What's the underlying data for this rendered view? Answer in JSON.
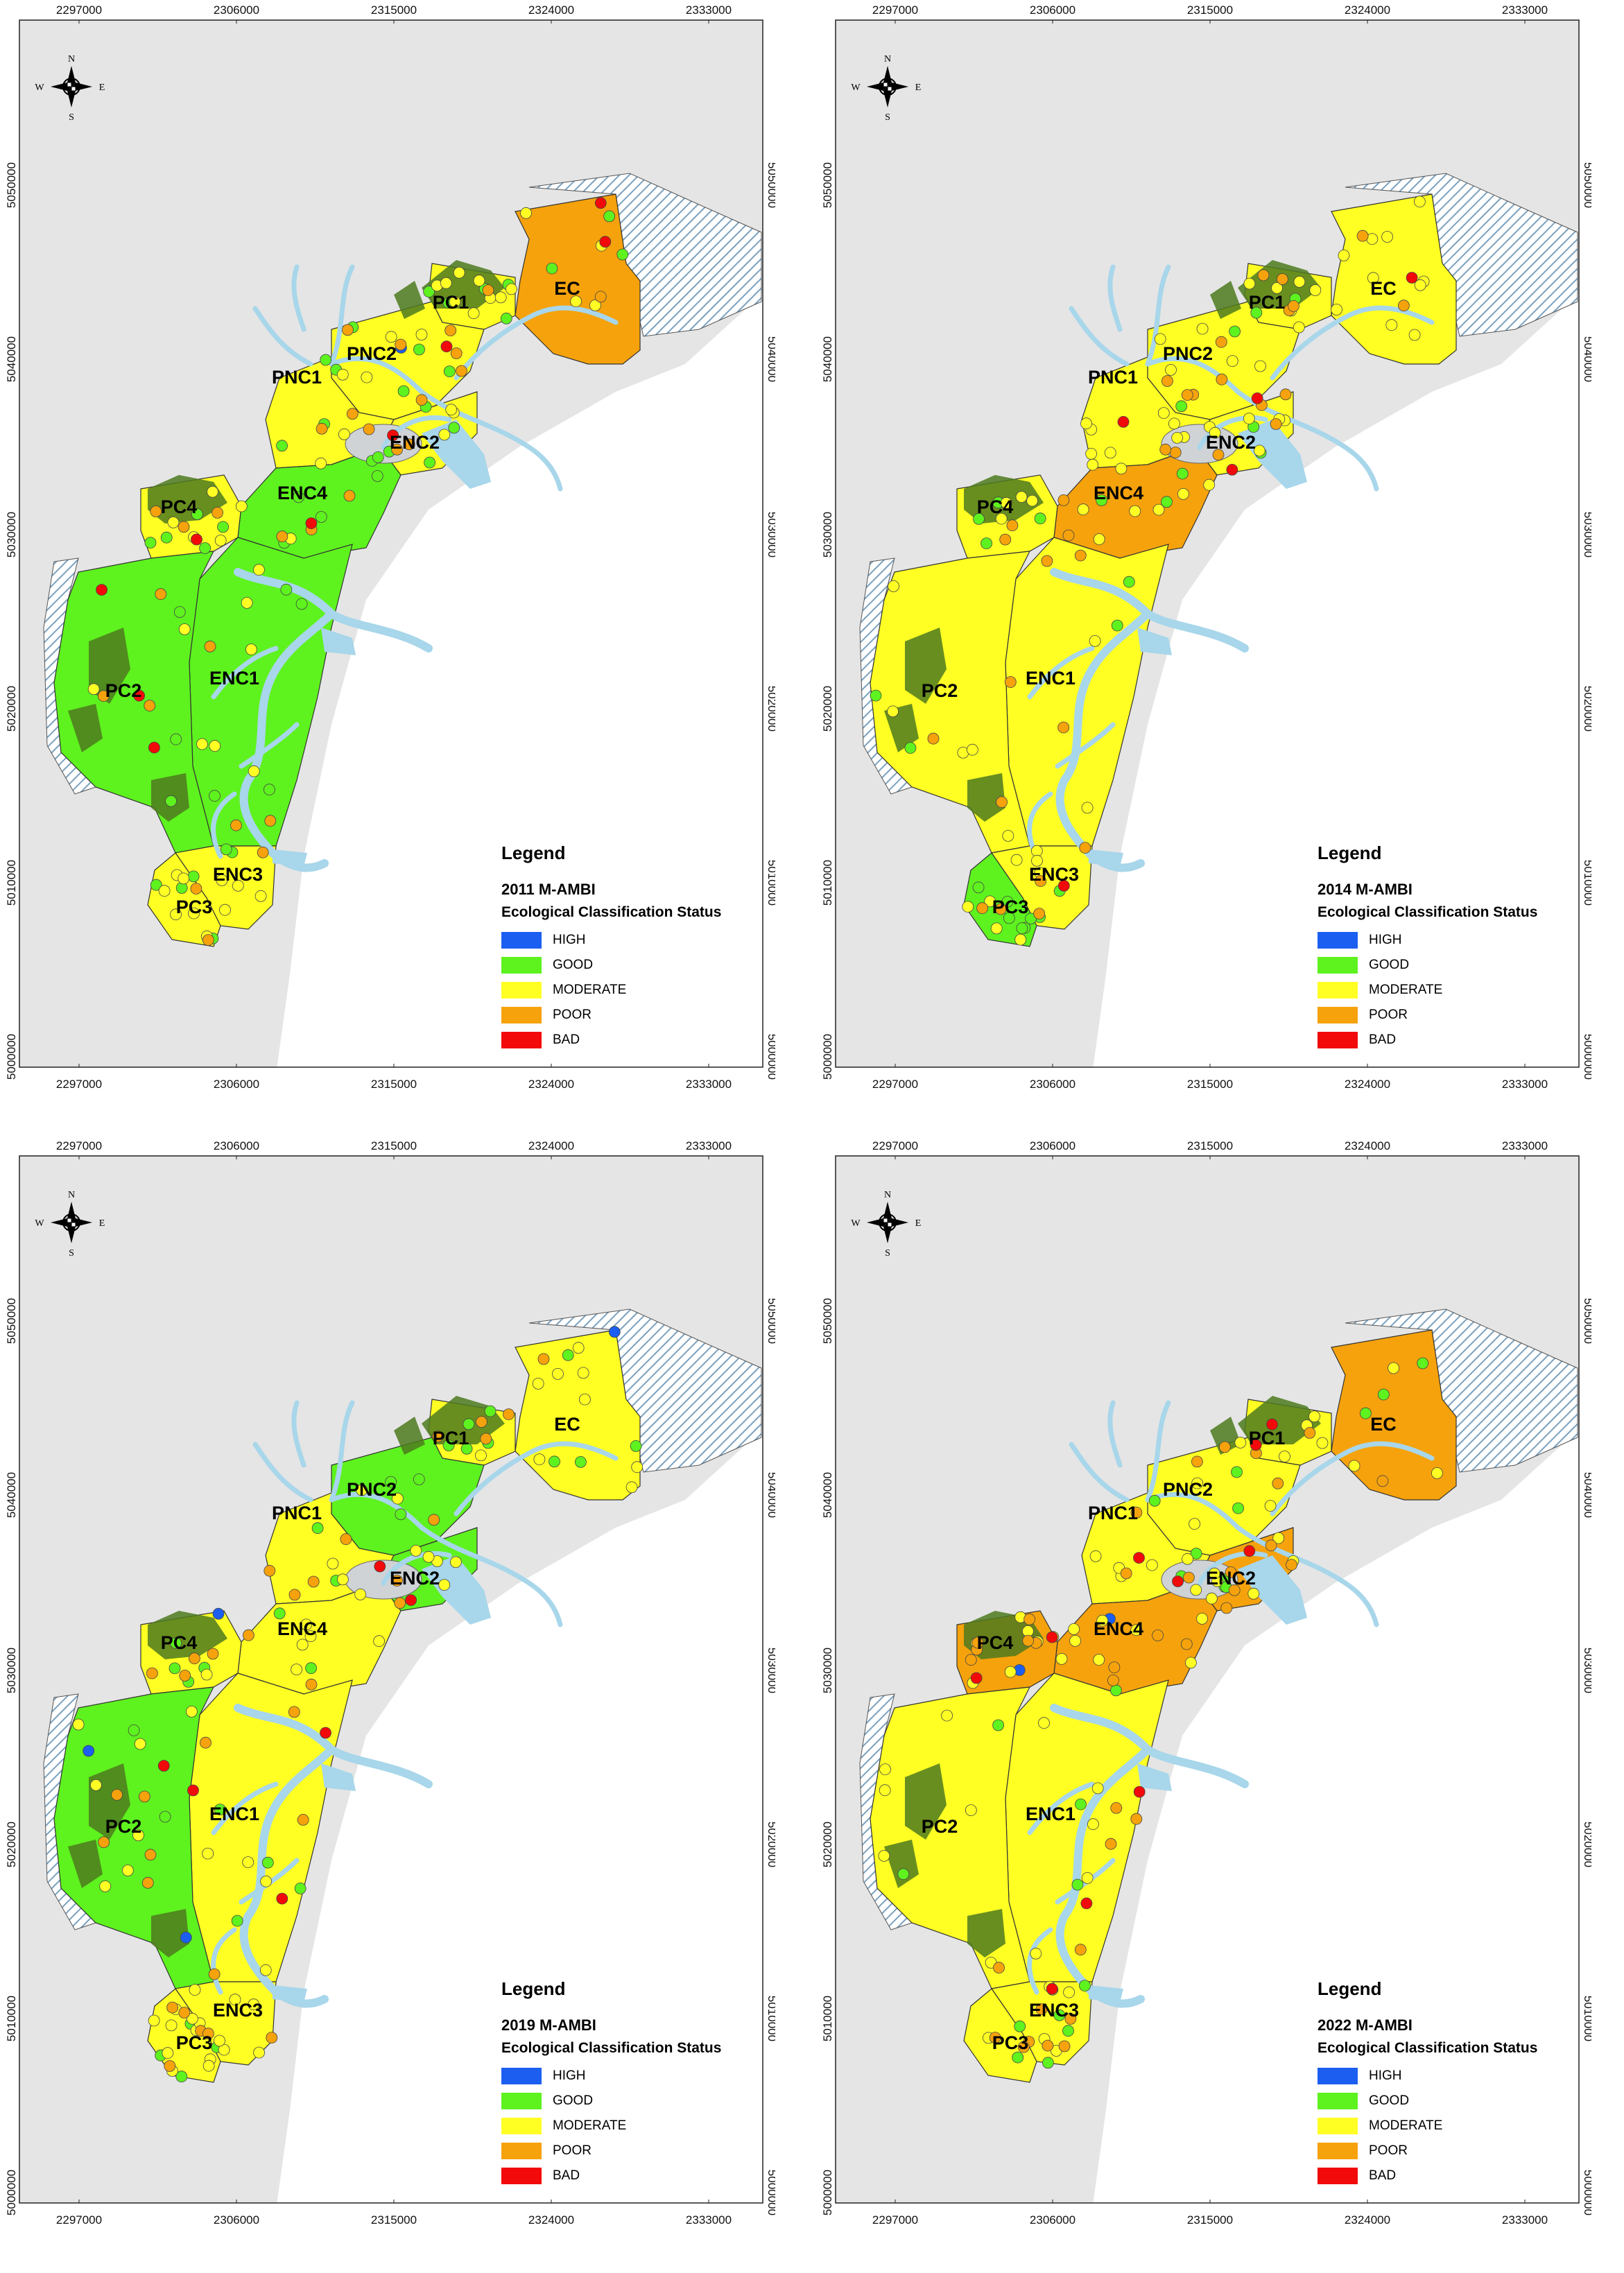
{
  "compass": {
    "n": "N",
    "s": "S",
    "e": "E",
    "w": "W"
  },
  "axes": {
    "x_ticks": [
      "2297000",
      "2306000",
      "2315000",
      "2324000",
      "2333000"
    ],
    "y_ticks": [
      "5050000",
      "5040000",
      "5030000",
      "5020000",
      "5010000",
      "5000000"
    ]
  },
  "zones": [
    "EC",
    "PC1",
    "PNC2",
    "PNC1",
    "ENC2",
    "ENC4",
    "PC4",
    "ENC1",
    "PC2",
    "ENC3",
    "PC3"
  ],
  "legend": {
    "title": "Legend",
    "subtitle": "Ecological Classification Status",
    "classes": [
      {
        "label": "HIGH",
        "color": "#1c5ff0"
      },
      {
        "label": "GOOD",
        "color": "#5ef21e"
      },
      {
        "label": "MODERATE",
        "color": "#ffff24"
      },
      {
        "label": "POOR",
        "color": "#f5a20c"
      },
      {
        "label": "BAD",
        "color": "#f20a0a"
      }
    ]
  },
  "colors": {
    "land": "#e5e5e5",
    "water": "#a8d6ea",
    "vegetation": "#4d7a1e",
    "hatch": "#7aa1bf",
    "border": "#333333"
  },
  "panels": [
    {
      "year_title": "2011 M-AMBI",
      "zone_status": {
        "EC": "POOR",
        "PC1": "MODERATE",
        "PNC2": "MODERATE",
        "PNC1": "MODERATE",
        "ENC2": "MODERATE",
        "ENC4": "GOOD",
        "PC4": "MODERATE",
        "ENC1": "GOOD",
        "PC2": "GOOD",
        "ENC3": "MODERATE",
        "PC3": "MODERATE"
      },
      "stations": {
        "HIGH": 1,
        "GOOD": 44,
        "MODERATE": 46,
        "POOR": 28,
        "BAD": 9
      }
    },
    {
      "year_title": "2014 M-AMBI",
      "zone_status": {
        "EC": "MODERATE",
        "PC1": "MODERATE",
        "PNC2": "MODERATE",
        "PNC1": "MODERATE",
        "ENC2": "MODERATE",
        "ENC4": "POOR",
        "PC4": "MODERATE",
        "ENC1": "MODERATE",
        "PC2": "MODERATE",
        "ENC3": "MODERATE",
        "PC3": "GOOD"
      },
      "stations": {
        "HIGH": 0,
        "GOOD": 25,
        "MODERATE": 62,
        "POOR": 32,
        "BAD": 5
      }
    },
    {
      "year_title": "2019 M-AMBI",
      "zone_status": {
        "EC": "MODERATE",
        "PC1": "MODERATE",
        "PNC2": "GOOD",
        "PNC1": "MODERATE",
        "ENC2": "GOOD",
        "ENC4": "MODERATE",
        "PC4": "MODERATE",
        "ENC1": "MODERATE",
        "PC2": "GOOD",
        "ENC3": "MODERATE",
        "PC3": "MODERATE"
      },
      "stations": {
        "HIGH": 4,
        "GOOD": 30,
        "MODERATE": 52,
        "POOR": 33,
        "BAD": 6
      }
    },
    {
      "year_title": "2022 M-AMBI",
      "zone_status": {
        "EC": "POOR",
        "PC1": "MODERATE",
        "PNC2": "MODERATE",
        "PNC1": "MODERATE",
        "ENC2": "POOR",
        "ENC4": "POOR",
        "PC4": "POOR",
        "ENC1": "MODERATE",
        "PC2": "MODERATE",
        "ENC3": "MODERATE",
        "PC3": "MODERATE"
      },
      "stations": {
        "HIGH": 2,
        "GOOD": 22,
        "MODERATE": 55,
        "POOR": 36,
        "BAD": 10
      }
    }
  ]
}
